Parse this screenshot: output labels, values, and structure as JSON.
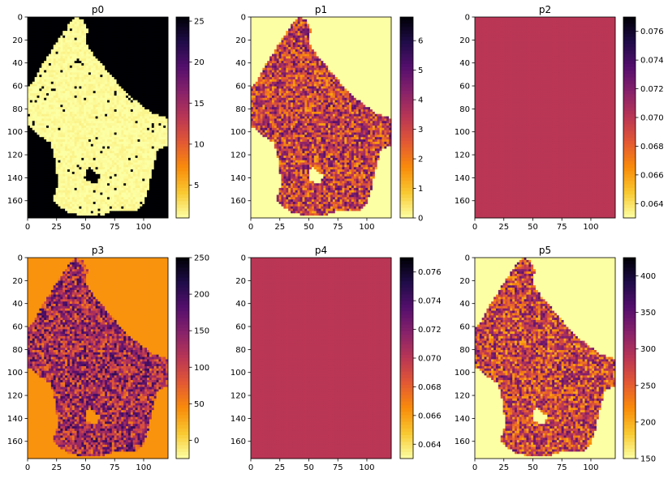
{
  "chart_data": [
    {
      "type": "heatmap",
      "title": "p0",
      "colormap": "inferno_r",
      "xlim": [
        0,
        121
      ],
      "ylim": [
        175,
        0
      ],
      "xticks": [
        0,
        25,
        50,
        75,
        100
      ],
      "yticks": [
        0,
        20,
        40,
        60,
        80,
        100,
        120,
        140,
        160
      ],
      "colorbar": {
        "range": [
          1,
          25.5
        ],
        "ticks": [
          5,
          10,
          15,
          20,
          25
        ]
      },
      "mask_fill_value": 25.5,
      "inside_base_value": 1.2,
      "description_values": {
        "background": 25.5,
        "inside": 1.2
      }
    },
    {
      "type": "heatmap",
      "title": "p1",
      "colormap": "inferno_r",
      "xlim": [
        0,
        121
      ],
      "ylim": [
        175,
        0
      ],
      "xticks": [
        0,
        25,
        50,
        75,
        100
      ],
      "yticks": [
        0,
        20,
        40,
        60,
        80,
        100,
        120,
        140,
        160
      ],
      "colorbar": {
        "range": [
          0,
          6.8
        ],
        "ticks": [
          0,
          1,
          2,
          3,
          4,
          5,
          6
        ]
      },
      "mask_fill_value": 0,
      "inside_base_value": 3.2
    },
    {
      "type": "heatmap",
      "title": "p2",
      "colormap": "inferno_r",
      "xlim": [
        0,
        121
      ],
      "ylim": [
        175,
        0
      ],
      "xticks": [
        0,
        25,
        50,
        75,
        100
      ],
      "yticks": [
        0,
        20,
        40,
        60,
        80,
        100,
        120,
        140,
        160
      ],
      "colorbar": {
        "range": [
          0.063,
          0.077
        ],
        "ticks": [
          "0.064",
          "0.066",
          "0.068",
          "0.070",
          "0.072",
          "0.074",
          "0.076"
        ]
      },
      "constant_value": 0.07
    },
    {
      "type": "heatmap",
      "title": "p3",
      "colormap": "inferno_r",
      "xlim": [
        0,
        121
      ],
      "ylim": [
        175,
        0
      ],
      "xticks": [
        0,
        25,
        50,
        75,
        100
      ],
      "yticks": [
        0,
        20,
        40,
        60,
        80,
        100,
        120,
        140,
        160
      ],
      "colorbar": {
        "range": [
          -25,
          250
        ],
        "ticks": [
          0,
          50,
          100,
          150,
          200,
          250
        ]
      },
      "mask_fill_value": 40,
      "inside_base_value": 130
    },
    {
      "type": "heatmap",
      "title": "p4",
      "colormap": "inferno_r",
      "xlim": [
        0,
        121
      ],
      "ylim": [
        175,
        0
      ],
      "xticks": [
        0,
        25,
        50,
        75,
        100
      ],
      "yticks": [
        0,
        20,
        40,
        60,
        80,
        100,
        120,
        140,
        160
      ],
      "colorbar": {
        "range": [
          0.063,
          0.077
        ],
        "ticks": [
          "0.064",
          "0.066",
          "0.068",
          "0.070",
          "0.072",
          "0.074",
          "0.076"
        ]
      },
      "constant_value": 0.07
    },
    {
      "type": "heatmap",
      "title": "p5",
      "colormap": "inferno_r",
      "xlim": [
        0,
        121
      ],
      "ylim": [
        175,
        0
      ],
      "xticks": [
        0,
        25,
        50,
        75,
        100
      ],
      "yticks": [
        0,
        20,
        40,
        60,
        80,
        100,
        120,
        140,
        160
      ],
      "colorbar": {
        "range": [
          150,
          425
        ],
        "ticks": [
          150,
          200,
          250,
          300,
          350,
          400
        ]
      },
      "mask_fill_value": 150,
      "inside_base_value": 275
    }
  ]
}
